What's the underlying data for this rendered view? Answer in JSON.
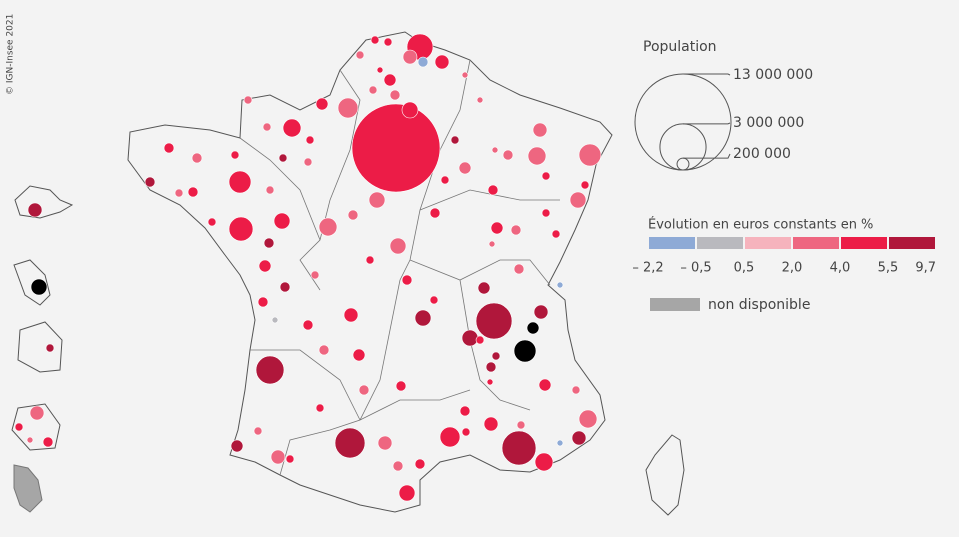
{
  "copyright": "© IGN-Insee 2021",
  "size_legend": {
    "title": "Population",
    "steps": [
      {
        "value": 13000000,
        "label": "13 000 000"
      },
      {
        "value": 3000000,
        "label": "3 000 000"
      },
      {
        "value": 200000,
        "label": "200 000"
      }
    ]
  },
  "color_legend": {
    "title": "Évolution en euros constants en %",
    "breaks": [
      {
        "value": -2.2,
        "label": "– 2,2"
      },
      {
        "value": -0.5,
        "label": "– 0,5"
      },
      {
        "value": 0.5,
        "label": "0,5"
      },
      {
        "value": 2.0,
        "label": "2,0"
      },
      {
        "value": 4.0,
        "label": "4,0"
      },
      {
        "value": 5.5,
        "label": "5,5"
      },
      {
        "value": 9.7,
        "label": "9,7"
      }
    ],
    "colors": [
      "#8eaad6",
      "#b9b9be",
      "#f6b3bd",
      "#ee6680",
      "#ec1c47",
      "#b0173b"
    ],
    "missing": {
      "label": "non disponible",
      "color": "#a6a6a6"
    }
  }
}
